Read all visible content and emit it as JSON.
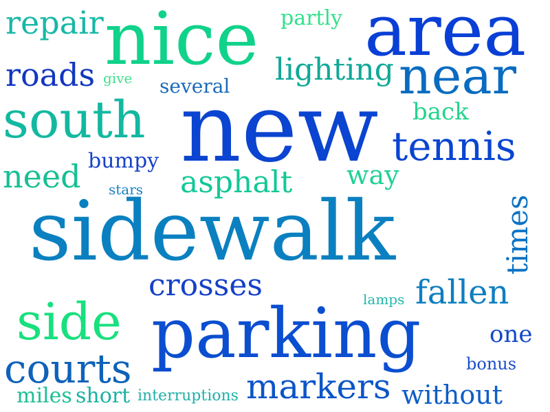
{
  "word_cloud": {
    "words": [
      {
        "text": "repair",
        "color": "#16b8a6"
      },
      {
        "text": "nice",
        "color": "#10d28a"
      },
      {
        "text": "partly",
        "color": "#33e08c"
      },
      {
        "text": "area",
        "color": "#0a3fd6"
      },
      {
        "text": "roads",
        "color": "#1236c0"
      },
      {
        "text": "give",
        "color": "#3fe08a"
      },
      {
        "text": "lighting",
        "color": "#11a898"
      },
      {
        "text": "near",
        "color": "#0a6cc0"
      },
      {
        "text": "several",
        "color": "#1a6ab8"
      },
      {
        "text": "south",
        "color": "#12b8a0"
      },
      {
        "text": "new",
        "color": "#0b44d0"
      },
      {
        "text": "back",
        "color": "#22d48c"
      },
      {
        "text": "tennis",
        "color": "#0a45d2"
      },
      {
        "text": "bumpy",
        "color": "#1742c8"
      },
      {
        "text": "need",
        "color": "#16bf94"
      },
      {
        "text": "asphalt",
        "color": "#12c896"
      },
      {
        "text": "way",
        "color": "#22cf96"
      },
      {
        "text": "stars",
        "color": "#1a7fbf"
      },
      {
        "text": "sidewalk",
        "color": "#0b80c0"
      },
      {
        "text": "times",
        "color": "#0a72c4"
      },
      {
        "text": "crosses",
        "color": "#1540c8"
      },
      {
        "text": "fallen",
        "color": "#0e7ec0"
      },
      {
        "text": "lamps",
        "color": "#1fb8a8"
      },
      {
        "text": "side",
        "color": "#18e07e"
      },
      {
        "text": "parking",
        "color": "#0b4ed0"
      },
      {
        "text": "one",
        "color": "#1248c8"
      },
      {
        "text": "courts",
        "color": "#0e62b8"
      },
      {
        "text": "bonus",
        "color": "#1a4ec8"
      },
      {
        "text": "markers",
        "color": "#0b55c8"
      },
      {
        "text": "miles",
        "color": "#1abf94"
      },
      {
        "text": "short",
        "color": "#17b2a0"
      },
      {
        "text": "interruptions",
        "color": "#1fb0a6"
      },
      {
        "text": "without",
        "color": "#0e5ec6"
      }
    ]
  }
}
